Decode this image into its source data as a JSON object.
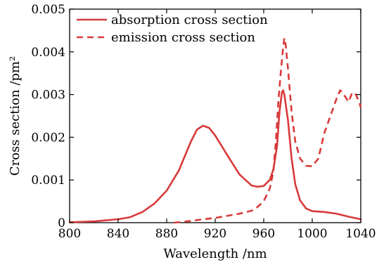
{
  "chart_data": {
    "type": "line",
    "xlabel": "Wavelength /nm",
    "ylabel": "Cross section /pm²",
    "xlim": [
      800,
      1040
    ],
    "ylim": [
      0,
      0.005
    ],
    "x_ticks": [
      800,
      840,
      880,
      920,
      960,
      1000,
      1040
    ],
    "y_ticks": [
      0,
      0.001,
      0.002,
      0.003,
      0.004,
      0.005
    ],
    "x_tick_labels": [
      "800",
      "840",
      "880",
      "920",
      "960",
      "1000",
      "1040"
    ],
    "y_tick_labels": [
      "0",
      "0.001",
      "0.002",
      "0.003",
      "0.004",
      "0.005"
    ],
    "grid": false,
    "legend": "top-left",
    "series": [
      {
        "name": "absorption cross section",
        "color": "#d83a3a",
        "line_style": "solid",
        "points": [
          [
            800,
            1e-05
          ],
          [
            820,
            3e-05
          ],
          [
            840,
            8e-05
          ],
          [
            850,
            0.00013
          ],
          [
            860,
            0.00025
          ],
          [
            870,
            0.00045
          ],
          [
            880,
            0.00075
          ],
          [
            890,
            0.00122
          ],
          [
            900,
            0.0019
          ],
          [
            905,
            0.00218
          ],
          [
            910,
            0.00227
          ],
          [
            915,
            0.00222
          ],
          [
            920,
            0.00204
          ],
          [
            930,
            0.00158
          ],
          [
            940,
            0.00113
          ],
          [
            950,
            0.00087
          ],
          [
            955,
            0.00084
          ],
          [
            960,
            0.00086
          ],
          [
            965,
            0.001
          ],
          [
            968,
            0.00125
          ],
          [
            971,
            0.0018
          ],
          [
            973,
            0.0026
          ],
          [
            975,
            0.00305
          ],
          [
            976,
            0.0031
          ],
          [
            977,
            0.003
          ],
          [
            980,
            0.0024
          ],
          [
            983,
            0.0015
          ],
          [
            986,
            0.0009
          ],
          [
            990,
            0.00052
          ],
          [
            995,
            0.00033
          ],
          [
            1000,
            0.00027
          ],
          [
            1010,
            0.00025
          ],
          [
            1020,
            0.00021
          ],
          [
            1030,
            0.00014
          ],
          [
            1040,
            8e-05
          ]
        ]
      },
      {
        "name": "emission cross section",
        "color": "#d83a3a",
        "line_style": "dashed",
        "points": [
          [
            886,
            0.0
          ],
          [
            890,
            1e-05
          ],
          [
            900,
            4e-05
          ],
          [
            910,
            8e-05
          ],
          [
            920,
            0.00011
          ],
          [
            930,
            0.00016
          ],
          [
            940,
            0.00021
          ],
          [
            950,
            0.00028
          ],
          [
            955,
            0.00037
          ],
          [
            960,
            0.0005
          ],
          [
            965,
            0.0008
          ],
          [
            968,
            0.0012
          ],
          [
            970,
            0.0019
          ],
          [
            972,
            0.0028
          ],
          [
            974,
            0.0035
          ],
          [
            976,
            0.0041
          ],
          [
            977,
            0.00432
          ],
          [
            978,
            0.0042
          ],
          [
            980,
            0.0036
          ],
          [
            983,
            0.0026
          ],
          [
            986,
            0.0019
          ],
          [
            990,
            0.0015
          ],
          [
            995,
            0.00133
          ],
          [
            1000,
            0.00132
          ],
          [
            1005,
            0.0015
          ],
          [
            1010,
            0.0021
          ],
          [
            1015,
            0.0025
          ],
          [
            1020,
            0.0029
          ],
          [
            1023,
            0.0031
          ],
          [
            1026,
            0.003
          ],
          [
            1030,
            0.00283
          ],
          [
            1033,
            0.00305
          ],
          [
            1036,
            0.003
          ],
          [
            1039,
            0.0028
          ],
          [
            1040,
            0.0027
          ]
        ]
      }
    ]
  }
}
